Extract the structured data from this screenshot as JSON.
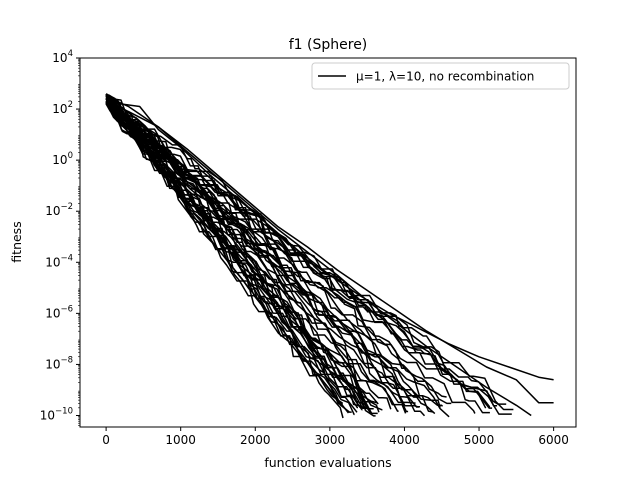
{
  "chart_data": {
    "type": "line",
    "title": "f1 (Sphere)",
    "xlabel": "function evaluations",
    "ylabel": "fitness",
    "xlim": [
      -350,
      6300
    ],
    "ylim_log10": [
      -10.45,
      4
    ],
    "yscale": "log",
    "grid": false,
    "legend_position": "top-right",
    "x_ticks": [
      0,
      1000,
      2000,
      3000,
      4000,
      5000,
      6000
    ],
    "x_tick_labels": [
      "0",
      "1000",
      "2000",
      "3000",
      "4000",
      "5000",
      "6000"
    ],
    "y_tick_exponents": [
      4,
      2,
      0,
      -2,
      -4,
      -6,
      -8,
      -10
    ],
    "y_tick_base": "10",
    "legend": {
      "label": "μ=1, λ=10, no recombination",
      "color": "#000000"
    },
    "line_color": "#000000",
    "num_runs": 50,
    "run_start_range": {
      "x": 0,
      "fitness_log10": [
        2.2,
        2.6
      ]
    },
    "run_end_x_range": [
      3150,
      6000
    ],
    "run_end_fitness_log10_range": [
      -10.1,
      -8.3
    ],
    "highlighted_runs": [
      {
        "x": [
          0,
          200,
          450,
          700,
          1000,
          1400,
          1800,
          2200,
          2600,
          3000,
          3400,
          3800,
          4200,
          4600,
          5000,
          5400,
          5800,
          6000
        ],
        "fitness_log10": [
          2.4,
          2.2,
          2.1,
          1.2,
          0.5,
          -0.6,
          -1.6,
          -2.6,
          -3.6,
          -4.5,
          -5.3,
          -6.0,
          -6.6,
          -7.2,
          -7.7,
          -8.1,
          -8.5,
          -8.6
        ]
      },
      {
        "x": [
          0,
          300,
          700,
          1100,
          1500,
          1900,
          2300,
          2700,
          3100,
          3500,
          3900,
          4300,
          4700,
          5100,
          5500,
          5700
        ],
        "fitness_log10": [
          2.5,
          2.1,
          1.3,
          0.3,
          -0.7,
          -1.7,
          -2.7,
          -3.6,
          -4.5,
          -5.5,
          -6.4,
          -7.3,
          -8.1,
          -8.9,
          -9.6,
          -10.0
        ]
      },
      {
        "x": [
          0,
          300,
          700,
          1100,
          1500,
          1900,
          2300,
          2700,
          3100,
          3500,
          3900,
          4300,
          4700,
          5100,
          5500,
          5800,
          6000
        ],
        "fitness_log10": [
          2.3,
          1.9,
          1.3,
          0.4,
          -0.6,
          -1.6,
          -2.6,
          -3.4,
          -4.3,
          -5.1,
          -5.9,
          -6.7,
          -7.4,
          -8.1,
          -8.6,
          -9.5,
          -9.5
        ]
      },
      {
        "x": [
          0,
          250,
          550,
          850,
          1150,
          1450,
          1750,
          2050,
          2350,
          2650,
          2950,
          3250
        ],
        "fitness_log10": [
          2.3,
          1.6,
          0.4,
          -0.9,
          -2.1,
          -3.3,
          -4.4,
          -5.5,
          -6.6,
          -7.7,
          -8.8,
          -9.9
        ]
      }
    ]
  }
}
